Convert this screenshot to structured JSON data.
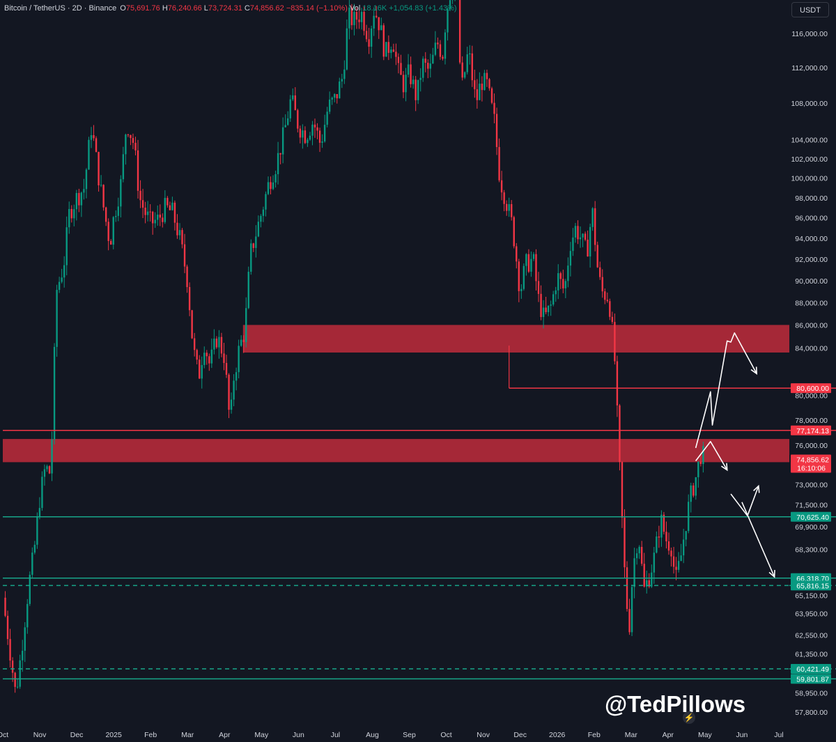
{
  "header": {
    "symbol": "Bitcoin / TetherUS · 2D · Binance",
    "open_label": "O",
    "open": "75,691.76",
    "high_label": "H",
    "high": "76,240.66",
    "low_label": "L",
    "low": "73,724.31",
    "close_label": "C",
    "close": "74,856.62",
    "change": "−835.14 (−1.10%)",
    "vol_label": "Vol",
    "vol": "18.16K",
    "vol_change": "+1,054.83 (+1.43%)"
  },
  "currency_button": "USDT",
  "watermark": "@TedPillows",
  "colors": {
    "background": "#131722",
    "bull": "#089981",
    "bear": "#f23645",
    "zone": "#b22a39",
    "support": "#17a589",
    "axis_text": "#d1d4dc",
    "arrow": "#ffffff"
  },
  "icons": {
    "lightning": "lightning-icon"
  },
  "chart_data": {
    "type": "candlestick",
    "title": "Bitcoin / TetherUS · 2D · Binance",
    "y_scale": "log",
    "x_ticks": [
      "Oct",
      "Nov",
      "Dec",
      "2025",
      "Feb",
      "Mar",
      "Apr",
      "May",
      "Jun",
      "Jul",
      "Aug",
      "Sep",
      "Oct",
      "Nov",
      "Dec",
      "2026",
      "Feb",
      "Mar",
      "Apr",
      "May",
      "Jun",
      "Jul"
    ],
    "y_ticks": [
      "116,000.00",
      "112,000.00",
      "108,000.00",
      "104,000.00",
      "102,000.00",
      "100,000.00",
      "98,000.00",
      "96,000.00",
      "94,000.00",
      "92,000.00",
      "90,000.00",
      "88,000.00",
      "86,000.00",
      "84,000.00",
      "80,000.00",
      "78,000.00",
      "76,000.00",
      "73,000.00",
      "71,500.00",
      "69,900.00",
      "68,300.00",
      "65,150.00",
      "63,950.00",
      "62,550.00",
      "61,350.00",
      "58,950.00",
      "57,800.00"
    ],
    "y_tick_values": [
      116000,
      112000,
      108000,
      104000,
      102000,
      100000,
      98000,
      96000,
      94000,
      92000,
      90000,
      88000,
      86000,
      84000,
      80000,
      78000,
      76000,
      73000,
      71500,
      69900,
      68300,
      65150,
      63950,
      62550,
      61350,
      58950,
      57800
    ],
    "price_labels": [
      {
        "value": 80600,
        "text": "80,600.00",
        "color": "#f23645"
      },
      {
        "value": 77174.13,
        "text": "77,174.13",
        "color": "#f23645"
      },
      {
        "value": 74856.62,
        "text": "74,856.62",
        "sub": "16:10:06",
        "color": "#f23645"
      },
      {
        "value": 70625.4,
        "text": "70,625.40",
        "color": "#089981"
      },
      {
        "value": 66318.7,
        "text": "66,318.70",
        "color": "#089981"
      },
      {
        "value": 65816.15,
        "text": "65,816.15",
        "color": "#089981"
      },
      {
        "value": 60421.49,
        "text": "60,421.49",
        "color": "#089981"
      },
      {
        "value": 59801.87,
        "text": "59,801.87",
        "color": "#089981"
      }
    ],
    "levels": [
      {
        "value": 80600,
        "style": "solid",
        "color": "#f23645",
        "from_month": 13.7
      },
      {
        "value": 77174.13,
        "style": "solid",
        "color": "#f23645",
        "from_month": 0
      },
      {
        "value": 70625.4,
        "style": "solid",
        "color": "#17a589",
        "from_month": 0
      },
      {
        "value": 66318.7,
        "style": "solid",
        "color": "#17a589",
        "from_month": 0
      },
      {
        "value": 65816.15,
        "style": "dashed",
        "color": "#17a589",
        "from_month": 0
      },
      {
        "value": 60421.49,
        "style": "dashed",
        "color": "#17a589",
        "from_month": 0
      },
      {
        "value": 59801.87,
        "style": "solid",
        "color": "#17a589",
        "from_month": 0
      }
    ],
    "zones": [
      {
        "from": 83600,
        "to": 86000,
        "start_month": 6.5
      },
      {
        "from": 74700,
        "to": 76500,
        "start_month": 0
      }
    ],
    "projection_paths": [
      {
        "points": [
          [
            18.75,
            75800
          ],
          [
            19.15,
            80300
          ],
          [
            19.2,
            77600
          ],
          [
            19.6,
            84600
          ],
          [
            19.7,
            84500
          ],
          [
            19.8,
            85300
          ],
          [
            20.4,
            81800
          ]
        ]
      },
      {
        "points": [
          [
            18.75,
            74800
          ],
          [
            19.15,
            76300
          ],
          [
            19.6,
            74100
          ]
        ]
      },
      {
        "points": [
          [
            19.7,
            72300
          ],
          [
            20.15,
            70700
          ],
          [
            20.45,
            72900
          ]
        ]
      },
      {
        "points": [
          [
            20.0,
            71700
          ],
          [
            20.88,
            66400
          ]
        ]
      }
    ],
    "price_path": [
      [
        0,
        65000
      ],
      [
        0.2,
        61500
      ],
      [
        0.35,
        58800
      ],
      [
        0.5,
        61500
      ],
      [
        0.7,
        65800
      ],
      [
        0.85,
        68200
      ],
      [
        1.0,
        72000
      ],
      [
        1.15,
        74300
      ],
      [
        1.3,
        73800
      ],
      [
        1.45,
        89000
      ],
      [
        1.65,
        91500
      ],
      [
        1.8,
        96500
      ],
      [
        2.0,
        98000
      ],
      [
        2.2,
        99000
      ],
      [
        2.4,
        105500
      ],
      [
        2.6,
        100000
      ],
      [
        2.75,
        96500
      ],
      [
        2.9,
        93500
      ],
      [
        3.0,
        96000
      ],
      [
        3.2,
        99500
      ],
      [
        3.35,
        106000
      ],
      [
        3.55,
        103500
      ],
      [
        3.7,
        98000
      ],
      [
        3.85,
        96500
      ],
      [
        4.0,
        95500
      ],
      [
        4.2,
        95800
      ],
      [
        4.4,
        97000
      ],
      [
        4.6,
        96500
      ],
      [
        4.8,
        93800
      ],
      [
        5.0,
        90000
      ],
      [
        5.15,
        84000
      ],
      [
        5.3,
        81500
      ],
      [
        5.45,
        84500
      ],
      [
        5.6,
        82500
      ],
      [
        5.8,
        85000
      ],
      [
        6.0,
        83200
      ],
      [
        6.15,
        77500
      ],
      [
        6.25,
        81500
      ],
      [
        6.4,
        84000
      ],
      [
        6.55,
        85500
      ],
      [
        6.7,
        92500
      ],
      [
        6.85,
        94500
      ],
      [
        7.0,
        96500
      ],
      [
        7.2,
        99500
      ],
      [
        7.4,
        101500
      ],
      [
        7.6,
        104500
      ],
      [
        7.8,
        108500
      ],
      [
        8.0,
        105500
      ],
      [
        8.2,
        104500
      ],
      [
        8.4,
        106000
      ],
      [
        8.6,
        103500
      ],
      [
        8.8,
        107500
      ],
      [
        9.0,
        108500
      ],
      [
        9.2,
        111000
      ],
      [
        9.35,
        118000
      ],
      [
        9.5,
        117500
      ],
      [
        9.7,
        118500
      ],
      [
        9.9,
        115500
      ],
      [
        10.05,
        119000
      ],
      [
        10.2,
        117000
      ],
      [
        10.35,
        113500
      ],
      [
        10.55,
        115500
      ],
      [
        10.7,
        111500
      ],
      [
        10.85,
        110000
      ],
      [
        11.0,
        111500
      ],
      [
        11.2,
        108500
      ],
      [
        11.35,
        112500
      ],
      [
        11.55,
        111500
      ],
      [
        11.75,
        115000
      ],
      [
        11.9,
        113500
      ],
      [
        12.0,
        118500
      ],
      [
        12.15,
        122000
      ],
      [
        12.3,
        121000
      ],
      [
        12.4,
        109000
      ],
      [
        12.6,
        114000
      ],
      [
        12.8,
        108000
      ],
      [
        12.95,
        110500
      ],
      [
        13.1,
        110000
      ],
      [
        13.3,
        106000
      ],
      [
        13.45,
        100000
      ],
      [
        13.6,
        98000
      ],
      [
        13.8,
        95000
      ],
      [
        14.0,
        89000
      ],
      [
        14.15,
        91500
      ],
      [
        14.35,
        92000
      ],
      [
        14.5,
        88200
      ],
      [
        14.65,
        86500
      ],
      [
        14.85,
        87800
      ],
      [
        15.0,
        90500
      ],
      [
        15.2,
        89000
      ],
      [
        15.35,
        93500
      ],
      [
        15.5,
        95000
      ],
      [
        15.65,
        94000
      ],
      [
        15.8,
        92500
      ],
      [
        15.95,
        96800
      ],
      [
        16.1,
        91000
      ],
      [
        16.2,
        89000
      ],
      [
        16.4,
        88500
      ],
      [
        16.55,
        83500
      ],
      [
        16.7,
        73500
      ],
      [
        16.85,
        65500
      ],
      [
        16.95,
        63000
      ],
      [
        17.05,
        67000
      ],
      [
        17.2,
        69500
      ],
      [
        17.35,
        65500
      ],
      [
        17.5,
        66500
      ],
      [
        17.65,
        68000
      ],
      [
        17.8,
        70500
      ],
      [
        17.95,
        69000
      ],
      [
        18.1,
        68500
      ],
      [
        18.2,
        66000
      ],
      [
        18.35,
        67800
      ],
      [
        18.5,
        70500
      ],
      [
        18.6,
        72000
      ],
      [
        18.75,
        73500
      ],
      [
        18.9,
        75500
      ],
      [
        19.0,
        74856
      ]
    ]
  }
}
